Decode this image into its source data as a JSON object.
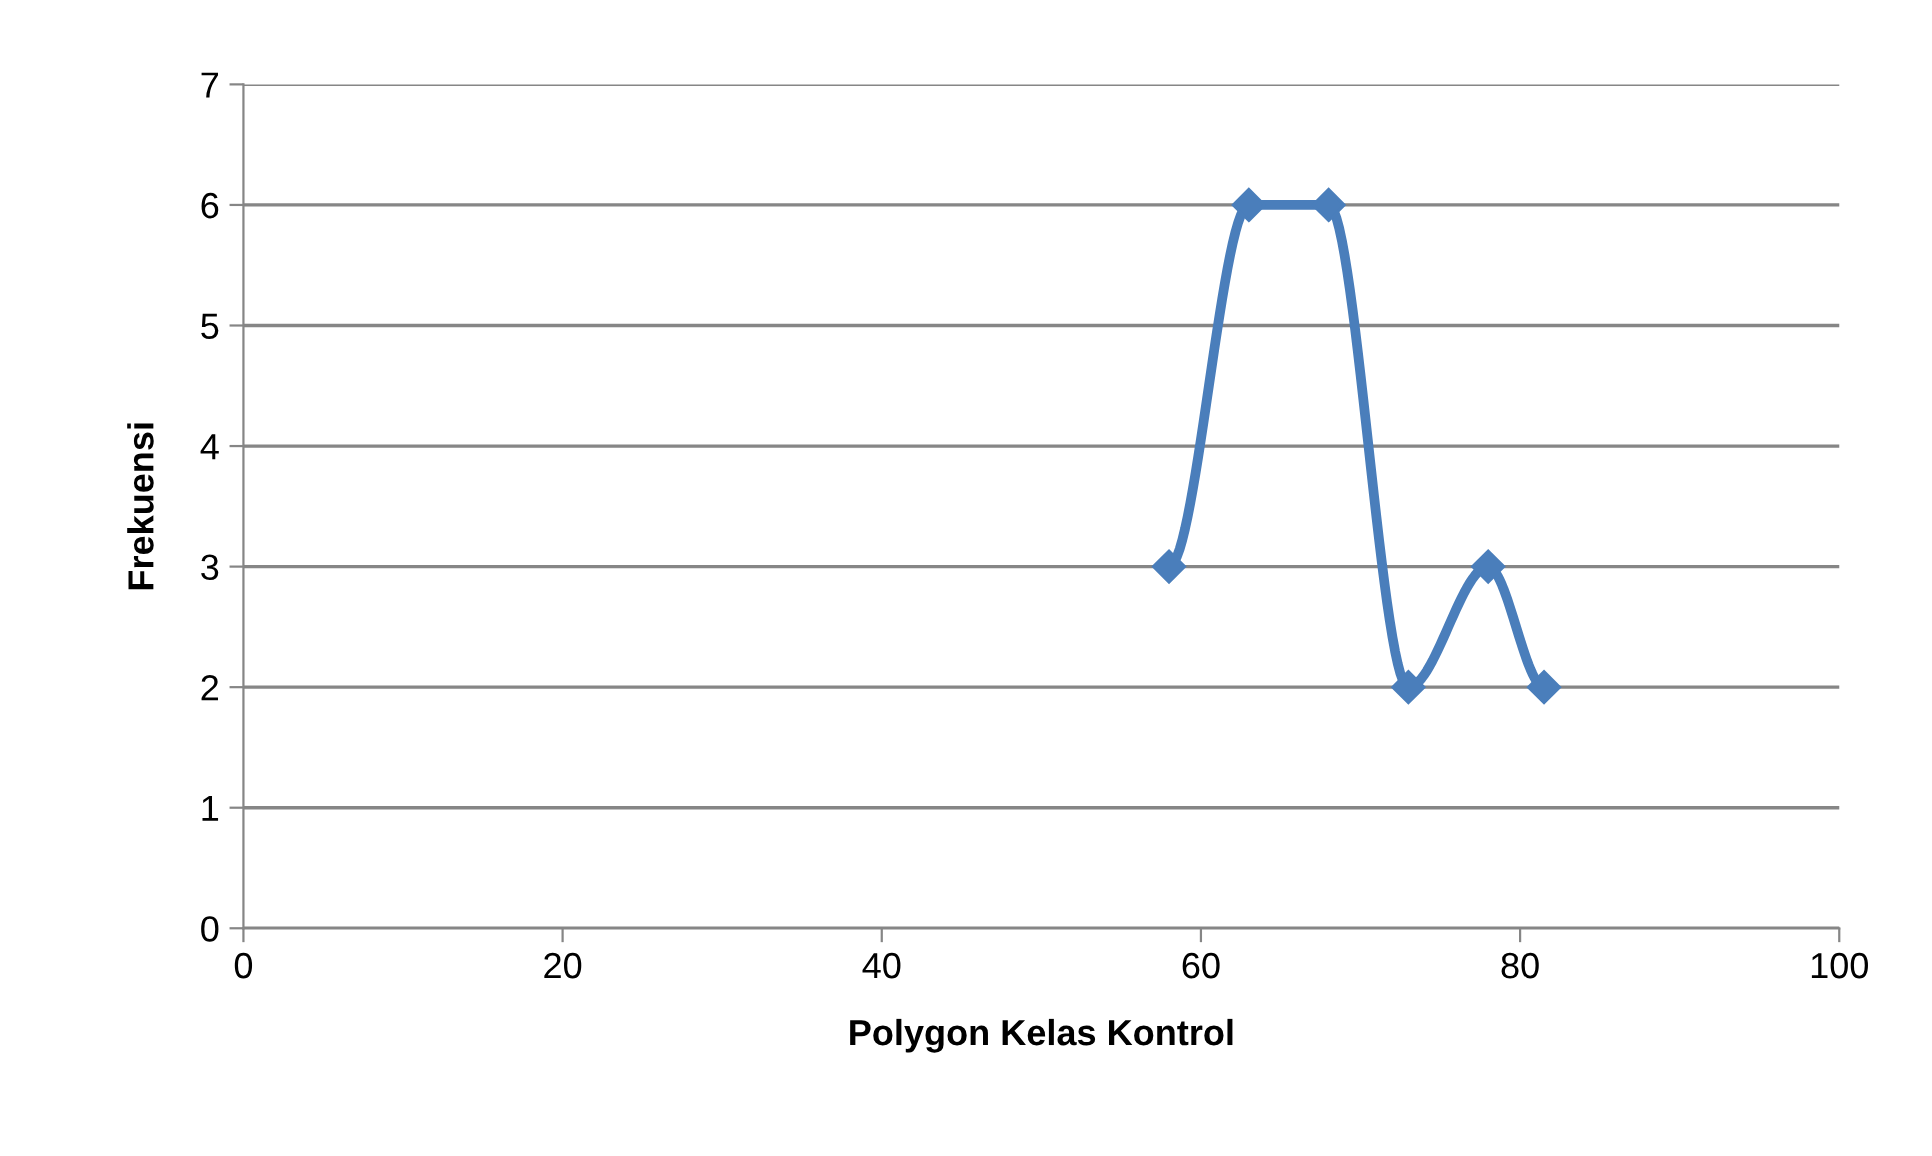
{
  "chart_data": {
    "type": "line",
    "xlabel": "Polygon Kelas Kontrol",
    "ylabel": "Frekuensi",
    "series": [
      {
        "color": "#4a7ebb",
        "x": [
          58,
          63,
          68,
          73,
          78,
          81.5
        ],
        "values": [
          3,
          6,
          6,
          2,
          3,
          2
        ]
      }
    ],
    "xlim": [
      0,
      100
    ],
    "xticks": [
      0,
      20,
      40,
      60,
      80,
      100
    ],
    "ylim": [
      0,
      7
    ],
    "yticks": [
      0,
      1,
      2,
      3,
      4,
      5,
      6,
      7
    ],
    "grid": "y",
    "marker": "diamond",
    "line_style": "solid"
  }
}
